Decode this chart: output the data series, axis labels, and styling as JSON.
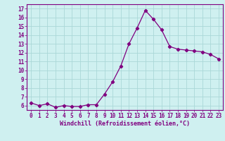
{
  "x": [
    0,
    1,
    2,
    3,
    4,
    5,
    6,
    7,
    8,
    9,
    10,
    11,
    12,
    13,
    14,
    15,
    16,
    17,
    18,
    19,
    20,
    21,
    22,
    23
  ],
  "y": [
    6.3,
    6.0,
    6.2,
    5.8,
    6.0,
    5.9,
    5.9,
    6.1,
    6.1,
    7.3,
    8.7,
    10.5,
    13.0,
    14.8,
    16.8,
    15.8,
    14.6,
    12.7,
    12.4,
    12.3,
    12.2,
    12.1,
    11.8,
    11.3
  ],
  "line_color": "#800080",
  "marker": "D",
  "marker_size": 2.2,
  "bg_color": "#cff0f0",
  "grid_color": "#aad8d8",
  "xlabel": "Windchill (Refroidissement éolien,°C)",
  "yticks": [
    6,
    7,
    8,
    9,
    10,
    11,
    12,
    13,
    14,
    15,
    16,
    17
  ],
  "xticks": [
    0,
    1,
    2,
    3,
    4,
    5,
    6,
    7,
    8,
    9,
    10,
    11,
    12,
    13,
    14,
    15,
    16,
    17,
    18,
    19,
    20,
    21,
    22,
    23
  ],
  "ylim": [
    5.5,
    17.5
  ],
  "xlim": [
    -0.5,
    23.5
  ],
  "axis_label_color": "#800080",
  "tick_color": "#800080",
  "tick_fontsize": 5.5,
  "xlabel_fontsize": 6.0
}
